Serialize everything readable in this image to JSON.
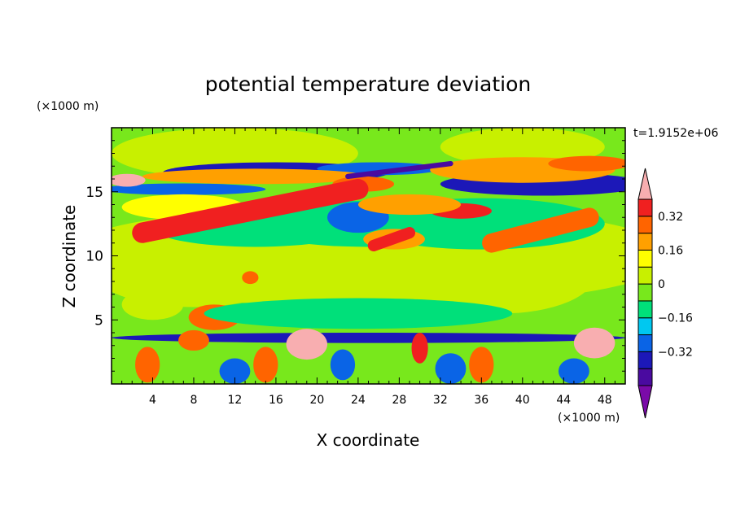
{
  "chart_data": {
    "type": "heatmap",
    "title": "potential temperature deviation",
    "xlabel": "X coordinate",
    "ylabel": "Z coordinate",
    "x_unit_label": "(×1000 m)",
    "y_unit_label": "(×1000 m)",
    "time_label": "t=1.9152e+06",
    "xlim": [
      0,
      50
    ],
    "ylim": [
      0,
      20
    ],
    "x_ticks": [
      4,
      8,
      12,
      16,
      20,
      24,
      28,
      32,
      36,
      40,
      44,
      48
    ],
    "y_ticks": [
      5,
      10,
      15
    ],
    "colorbar": {
      "levels": [
        -0.48,
        -0.4,
        -0.32,
        -0.24,
        -0.16,
        -0.08,
        0,
        0.08,
        0.16,
        0.24,
        0.32,
        0.4
      ],
      "colors": [
        "#7a0aa8",
        "#4a0aa0",
        "#1c18b8",
        "#0a64e6",
        "#00c8f0",
        "#00e07a",
        "#78e81c",
        "#c8f000",
        "#ffff00",
        "#ffa000",
        "#ff6400",
        "#f02020",
        "#f8aeb0"
      ],
      "tick_labels": [
        "0.32",
        "0.16",
        "0",
        "−0.16",
        "−0.32"
      ],
      "tick_values": [
        0.32,
        0.16,
        0,
        -0.16,
        -0.32
      ]
    },
    "features": [
      {
        "x": 25,
        "z": 10,
        "rx": 30,
        "rz": 4,
        "value": 0.0
      },
      {
        "x": 8,
        "z": 9,
        "rx": 10,
        "rz": 3,
        "value": 0.05
      },
      {
        "x": 38,
        "z": 8.5,
        "rx": 9,
        "rz": 3,
        "value": 0.05
      },
      {
        "x": 12,
        "z": 18,
        "rx": 12,
        "rz": 2,
        "value": 0.03
      },
      {
        "x": 40,
        "z": 18.5,
        "rx": 8,
        "rz": 1.5,
        "value": 0.03
      },
      {
        "x": 25,
        "z": 12.5,
        "rx": 12,
        "rz": 1.8,
        "value": -0.16
      },
      {
        "x": 14,
        "z": 12.2,
        "rx": 10,
        "rz": 1.5,
        "value": -0.12
      },
      {
        "x": 36,
        "z": 12.5,
        "rx": 12,
        "rz": 2,
        "value": -0.14
      },
      {
        "x": 24,
        "z": 13,
        "rx": 3,
        "rz": 1.2,
        "value": -0.3
      },
      {
        "x": 16,
        "z": 16.5,
        "rx": 11,
        "rz": 0.8,
        "value": -0.34
      },
      {
        "x": 42,
        "z": 15.6,
        "rx": 10,
        "rz": 0.9,
        "value": -0.38
      },
      {
        "x": 26,
        "z": 16.8,
        "rx": 6,
        "rz": 0.5,
        "value": -0.28
      },
      {
        "x": 7,
        "z": 15.2,
        "rx": 8,
        "rz": 0.45,
        "value": -0.3
      },
      {
        "x": 1.5,
        "z": 15.9,
        "rx": 1.8,
        "rz": 0.5,
        "value": 0.44
      },
      {
        "x": 14,
        "z": 16.2,
        "rx": 11,
        "rz": 0.6,
        "value": 0.2
      },
      {
        "x": 38.5,
        "z": 16.6,
        "rx": 3,
        "rz": 0.4,
        "value": 0.44
      },
      {
        "x": 40,
        "z": 16.7,
        "rx": 9,
        "rz": 1.0,
        "value": 0.22
      },
      {
        "x": 46.5,
        "z": 17.2,
        "rx": 4,
        "rz": 0.6,
        "value": 0.24
      },
      {
        "x": 24.5,
        "z": 15.6,
        "rx": 3,
        "rz": 0.6,
        "value": 0.3
      },
      {
        "x": 34,
        "z": 13.5,
        "rx": 3,
        "rz": 0.6,
        "value": 0.36
      },
      {
        "x": 29,
        "z": 14.0,
        "rx": 5,
        "rz": 0.8,
        "value": 0.22
      },
      {
        "x": 27.5,
        "z": 11.3,
        "rx": 3,
        "rz": 0.8,
        "value": 0.2
      },
      {
        "x": 7,
        "z": 13.8,
        "rx": 6,
        "rz": 1.0,
        "value": 0.12
      },
      {
        "x": 4,
        "z": 6.2,
        "rx": 3,
        "rz": 1.2,
        "value": 0.06
      },
      {
        "x": 10,
        "z": 5.2,
        "rx": 2.5,
        "rz": 1.0,
        "value": 0.3
      },
      {
        "x": 13.5,
        "z": 8.3,
        "rx": 0.8,
        "rz": 0.5,
        "value": 0.3
      },
      {
        "x": 24,
        "z": 5.5,
        "rx": 15,
        "rz": 1.2,
        "value": -0.1
      },
      {
        "x": 25,
        "z": 3.6,
        "rx": 25,
        "rz": 0.4,
        "value": -0.34
      },
      {
        "x": 19,
        "z": 3.1,
        "rx": 2,
        "rz": 1.2,
        "value": 0.4
      },
      {
        "x": 30,
        "z": 2.8,
        "rx": 0.8,
        "rz": 1.2,
        "value": 0.34
      },
      {
        "x": 47,
        "z": 3.2,
        "rx": 2,
        "rz": 1.2,
        "value": 0.4
      },
      {
        "x": 8,
        "z": 3.4,
        "rx": 1.5,
        "rz": 0.8,
        "value": 0.24
      },
      {
        "x": 3.5,
        "z": 1.5,
        "rx": 1.2,
        "rz": 1.4,
        "value": 0.3
      },
      {
        "x": 15,
        "z": 1.5,
        "rx": 1.2,
        "rz": 1.4,
        "value": 0.28
      },
      {
        "x": 36,
        "z": 1.5,
        "rx": 1.2,
        "rz": 1.4,
        "value": 0.26
      },
      {
        "x": 12,
        "z": 1.0,
        "rx": 1.5,
        "rz": 1.0,
        "value": -0.28
      },
      {
        "x": 22.5,
        "z": 1.5,
        "rx": 1.2,
        "rz": 1.2,
        "value": -0.3
      },
      {
        "x": 33,
        "z": 1.2,
        "rx": 1.5,
        "rz": 1.2,
        "value": -0.26
      },
      {
        "x": 45,
        "z": 1.0,
        "rx": 1.5,
        "rz": 1.0,
        "value": -0.32
      }
    ],
    "bands": [
      {
        "x0": 3,
        "z0": 11.8,
        "x1": 24,
        "z1": 15.2,
        "width": 0.9,
        "value": 0.44
      },
      {
        "x0": 3,
        "z0": 11.8,
        "x1": 24,
        "z1": 15.2,
        "width": 1.6,
        "value": 0.32
      },
      {
        "x0": 37.5,
        "z0": 11.1,
        "x1": 46,
        "z1": 12.9,
        "width": 0.8,
        "value": 0.44
      },
      {
        "x0": 37,
        "z0": 11.0,
        "x1": 46.5,
        "z1": 13.0,
        "width": 1.5,
        "value": 0.3
      },
      {
        "x0": 25.5,
        "z0": 10.8,
        "x1": 29,
        "z1": 11.8,
        "width": 0.9,
        "value": 0.32
      },
      {
        "x0": 23,
        "z0": 16.2,
        "x1": 33,
        "z1": 17.2,
        "width": 0.4,
        "value": -0.44
      }
    ]
  }
}
